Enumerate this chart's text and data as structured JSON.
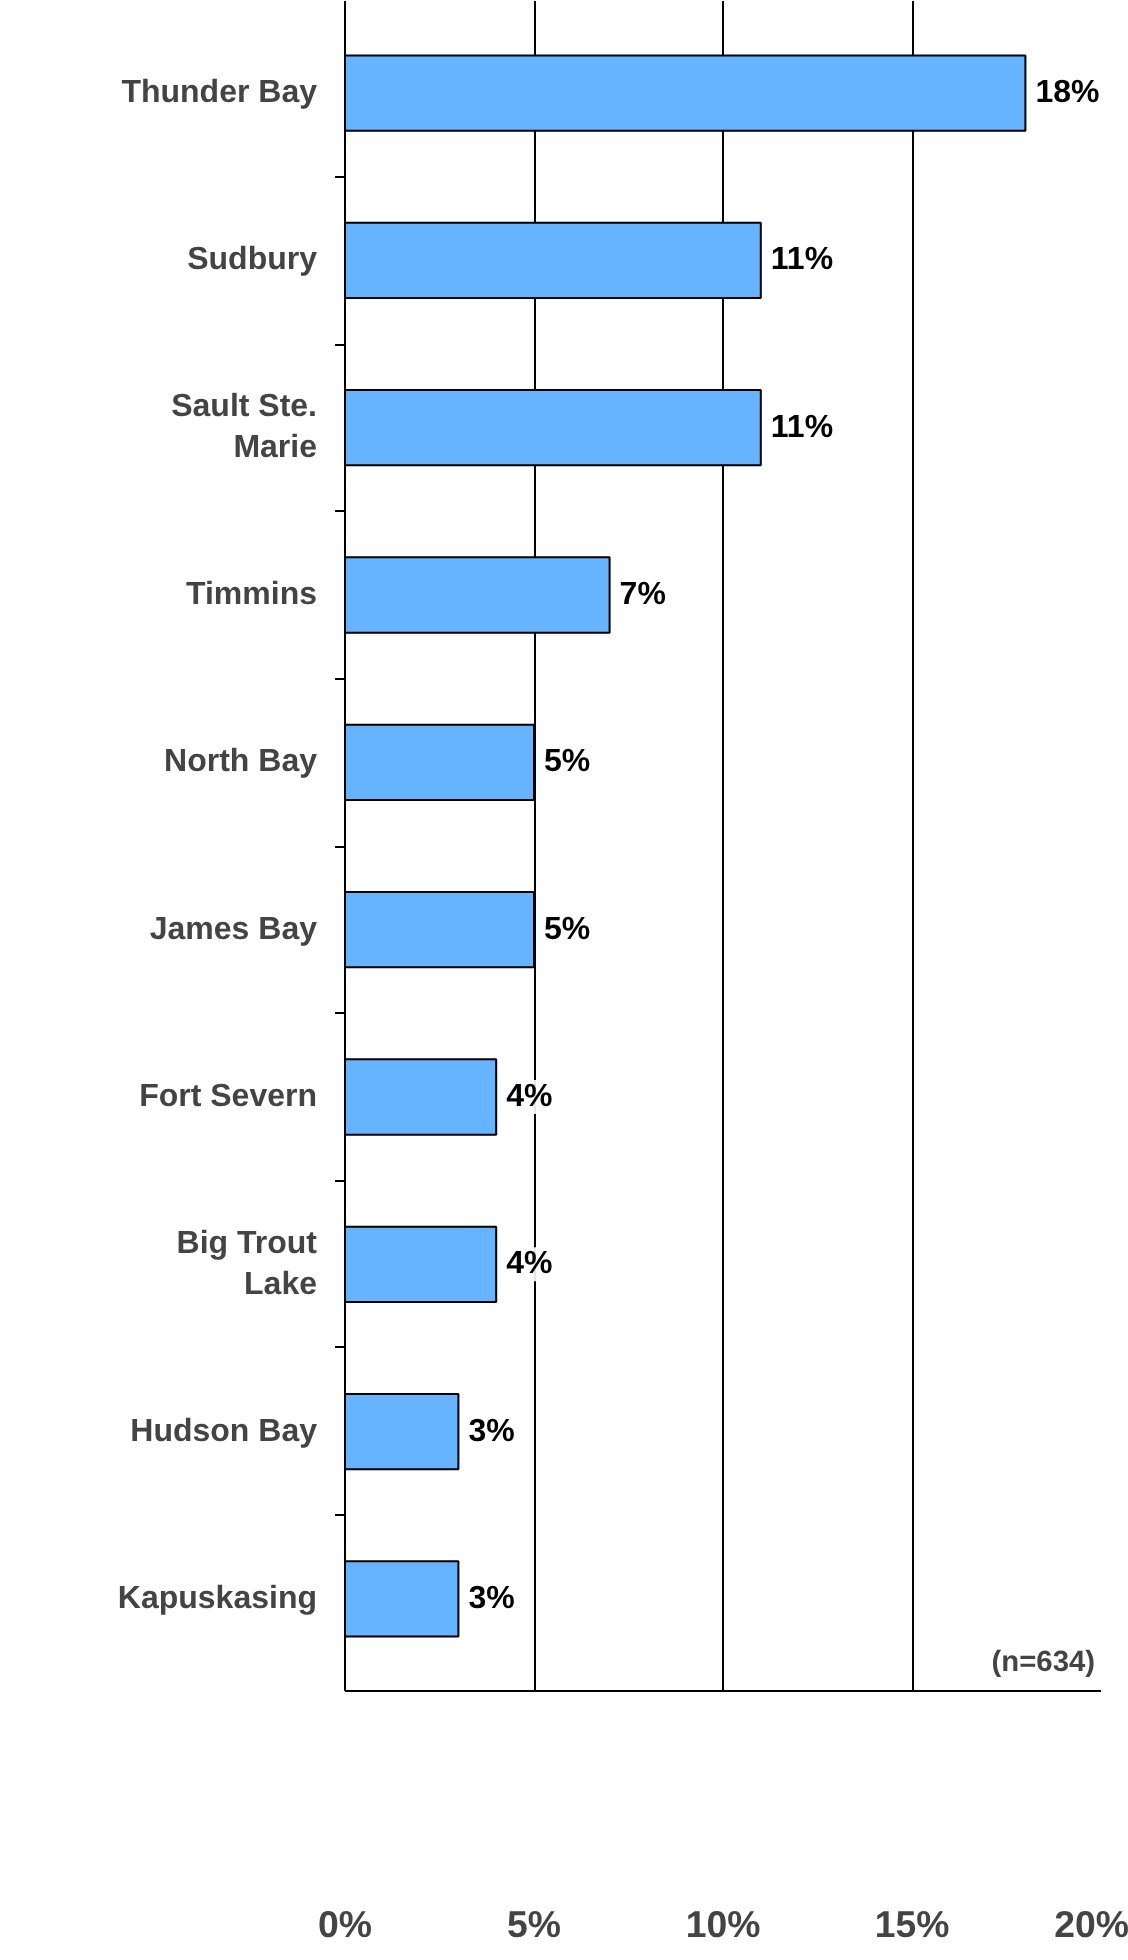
{
  "chart_data": {
    "type": "bar",
    "orientation": "horizontal",
    "categories": [
      "Thunder Bay",
      "Sudbury",
      "Sault Ste. Marie",
      "Timmins",
      "North Bay",
      "James Bay",
      "Fort Severn",
      "Big Trout Lake",
      "Hudson Bay",
      "Kapuskasing"
    ],
    "values": [
      18,
      11,
      11,
      7,
      5,
      5,
      4,
      4,
      3,
      3
    ],
    "value_labels": [
      "18%",
      "11%",
      "11%",
      "7%",
      "5%",
      "5%",
      "4%",
      "4%",
      "3%",
      "3%"
    ],
    "color": "#66b3ff",
    "xlim": [
      0,
      20
    ],
    "xticks": [
      {
        "value": 0,
        "label": "0%"
      },
      {
        "value": 5,
        "label": "5%"
      },
      {
        "value": 10,
        "label": "10%"
      },
      {
        "value": 15,
        "label": "15%"
      },
      {
        "value": 20,
        "label": "20%"
      }
    ],
    "grid": "x",
    "annotations": [
      "(n=634)"
    ]
  }
}
